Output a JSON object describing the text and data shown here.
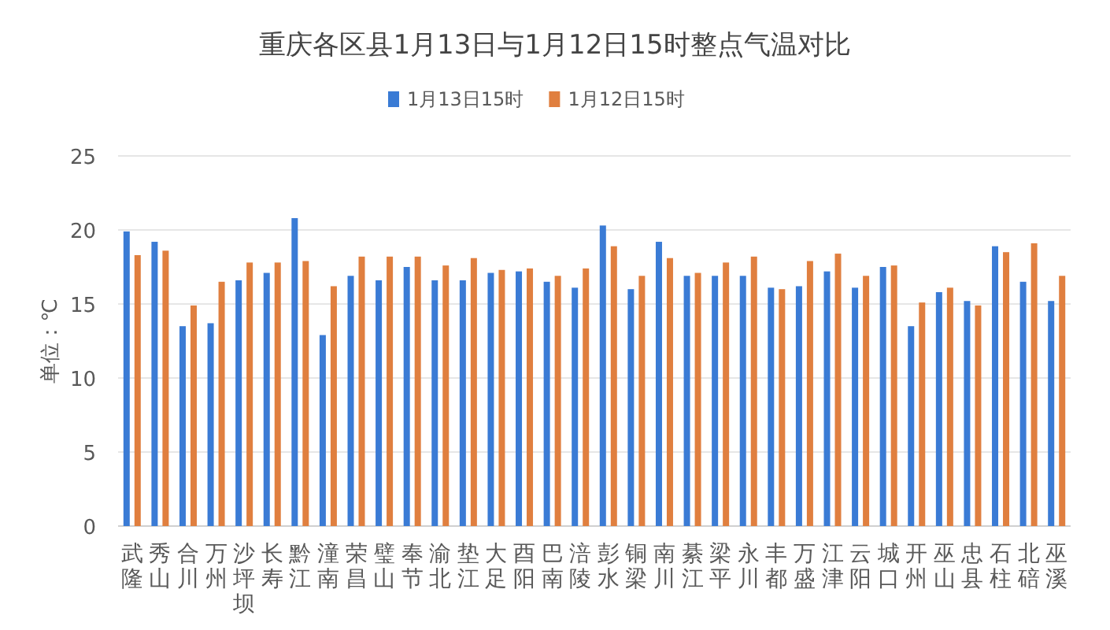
{
  "chart_data": {
    "type": "bar",
    "title": "重庆各区县1月13日与1月12日15时整点气温对比",
    "ylabel": "单位：℃",
    "categories": [
      "武隆",
      "秀山",
      "合川",
      "万州",
      "沙坪坝",
      "长寿",
      "黔江",
      "潼南",
      "荣昌",
      "璧山",
      "奉节",
      "渝北",
      "垫江",
      "大足",
      "酉阳",
      "巴南",
      "涪陵",
      "彭水",
      "铜梁",
      "南川",
      "綦江",
      "梁平",
      "永川",
      "丰都",
      "万盛",
      "江津",
      "云阳",
      "城口",
      "开州",
      "巫山",
      "忠县",
      "石柱",
      "北碚",
      "巫溪"
    ],
    "series": [
      {
        "name": "1月13日15时",
        "color": "#3a7bd5",
        "values": [
          19.9,
          19.2,
          13.5,
          13.7,
          16.6,
          17.1,
          20.8,
          12.9,
          16.9,
          16.6,
          17.5,
          16.6,
          16.6,
          17.1,
          17.2,
          16.5,
          16.1,
          20.3,
          16.0,
          19.2,
          16.9,
          16.9,
          16.9,
          16.1,
          16.2,
          17.2,
          16.1,
          17.5,
          13.5,
          15.8,
          15.2,
          18.9,
          16.5,
          15.2
        ]
      },
      {
        "name": "1月12日15时",
        "color": "#e07f3f",
        "values": [
          18.3,
          18.6,
          14.9,
          16.5,
          17.8,
          17.8,
          17.9,
          16.2,
          18.2,
          18.2,
          18.2,
          17.6,
          18.1,
          17.3,
          17.4,
          16.9,
          17.4,
          18.9,
          16.9,
          18.1,
          17.1,
          17.8,
          18.2,
          16.0,
          17.9,
          18.4,
          16.9,
          17.6,
          15.1,
          16.1,
          14.9,
          18.5,
          19.1,
          16.9
        ]
      }
    ],
    "ylim": [
      0,
      25
    ],
    "yticks": [
      0,
      5,
      10,
      15,
      20,
      25
    ],
    "grid": "y",
    "legend": "top"
  }
}
